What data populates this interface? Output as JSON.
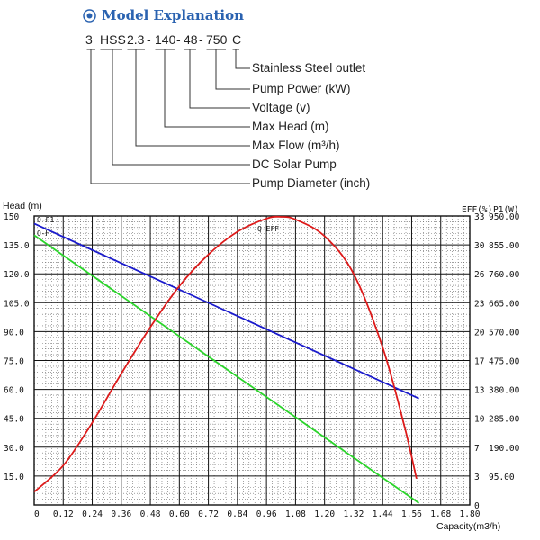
{
  "header": {
    "title": "Model Explanation",
    "icon": "target-circle-icon",
    "color": "#2a62b0"
  },
  "model_code": [
    "3",
    "HSS",
    "2.3",
    "140",
    "48",
    "750",
    "C"
  ],
  "code_separator": "-",
  "model_explanation": [
    "Stainless Steel outlet",
    "Pump Power (kW)",
    "Voltage (v)",
    "Max Head (m)",
    "Max Flow (m³/h)",
    "DC Solar Pump",
    "Pump Diameter (inch)"
  ],
  "chart_data": {
    "type": "line",
    "title": "",
    "xlabel": "Capacity(m3/h)",
    "ylabel": "Head (m)",
    "ylabel_right_eff": "EFF(%)",
    "ylabel_right_p": "P1(W)",
    "xlim": [
      0,
      1.8
    ],
    "ylim": [
      0,
      150
    ],
    "x_ticks": [
      "0",
      "0.12",
      "0.24",
      "0.36",
      "0.48",
      "0.60",
      "0.72",
      "0.84",
      "0.96",
      "1.08",
      "1.20",
      "1.32",
      "1.44",
      "1.56",
      "1.68",
      "1.80"
    ],
    "y_ticks": [
      "15.0",
      "30.0",
      "45.0",
      "60.0",
      "75.0",
      "90.0",
      "105.0",
      "120.0",
      "135.0",
      "150"
    ],
    "eff_ticks": [
      "0",
      "3",
      "7",
      "10",
      "13",
      "17",
      "20",
      "23",
      "26",
      "30",
      "33"
    ],
    "p_ticks": [
      "95.00",
      "190.00",
      "285.00",
      "380.00",
      "475.00",
      "570.00",
      "665.00",
      "760.00",
      "855.00",
      "950.00"
    ],
    "curve_labels": [
      "Q-P1",
      "Q-H",
      "Q-EFF"
    ],
    "grid": true,
    "series": [
      {
        "name": "Q-P1",
        "color": "#1a1acc",
        "axis": "P1 (W)",
        "x": [
          0,
          1.59
        ],
        "y": [
          925,
          350
        ]
      },
      {
        "name": "Q-H",
        "color": "#2ad42a",
        "axis": "Head (m)",
        "x": [
          0,
          1.59
        ],
        "y": [
          140,
          1
        ]
      },
      {
        "name": "Q-EFF",
        "color": "#dd1a1a",
        "axis": "EFF (%)",
        "x": [
          0,
          0.12,
          0.24,
          0.36,
          0.48,
          0.6,
          0.72,
          0.84,
          0.96,
          1.02,
          1.08,
          1.2,
          1.32,
          1.44,
          1.53,
          1.58
        ],
        "y": [
          1.5,
          4.5,
          9.4,
          15,
          20.3,
          25,
          28.6,
          31.2,
          32.7,
          32.9,
          32.6,
          30.7,
          26.4,
          18,
          9,
          3
        ]
      }
    ]
  }
}
